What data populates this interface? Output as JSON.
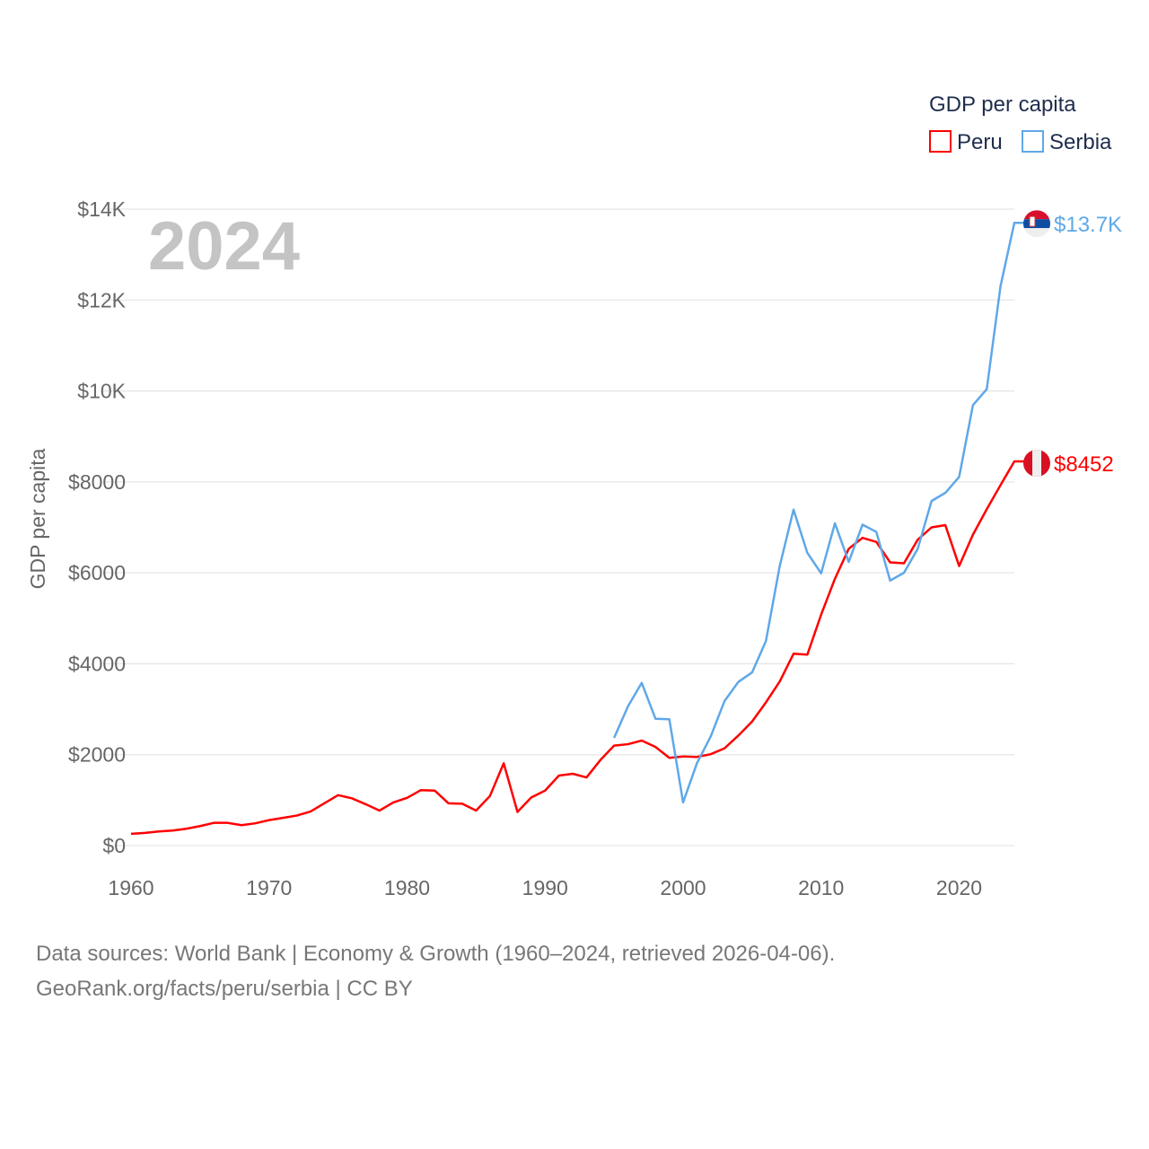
{
  "chart_data": {
    "type": "line",
    "legend_title": "GDP per capita",
    "legend_position": "top-right",
    "ylabel": "GDP per capita",
    "xlabel": "",
    "year_label": "2024",
    "xlim": [
      1960,
      2024
    ],
    "ylim": [
      0,
      14000
    ],
    "x_ticks": [
      "1960",
      "1970",
      "1980",
      "1990",
      "2000",
      "2010",
      "2020"
    ],
    "x_tick_values": [
      1960,
      1970,
      1980,
      1990,
      2000,
      2010,
      2020
    ],
    "y_ticks": [
      "$0",
      "$2000",
      "$4000",
      "$6000",
      "$8000",
      "$10K",
      "$12K",
      "$14K"
    ],
    "y_tick_values": [
      0,
      2000,
      4000,
      6000,
      8000,
      10000,
      12000,
      14000
    ],
    "grid": true,
    "series": [
      {
        "name": "Peru",
        "color": "#ff0000",
        "end_label": "$8452",
        "flag": "peru-flag",
        "start_year": 1960,
        "values": [
          260,
          280,
          310,
          330,
          370,
          430,
          500,
          500,
          450,
          490,
          560,
          610,
          660,
          750,
          930,
          1110,
          1040,
          910,
          770,
          950,
          1050,
          1220,
          1210,
          930,
          920,
          770,
          1090,
          1810,
          740,
          1060,
          1210,
          1540,
          1580,
          1500,
          1880,
          2200,
          2230,
          2310,
          2170,
          1930,
          1960,
          1950,
          2010,
          2140,
          2420,
          2730,
          3150,
          3610,
          4220,
          4200,
          5080,
          5870,
          6530,
          6770,
          6680,
          6230,
          6210,
          6730,
          7000,
          7050,
          6150,
          6840,
          7400,
          7930,
          8452
        ]
      },
      {
        "name": "Serbia",
        "color": "#5fa8e8",
        "end_label": "$13.7K",
        "flag": "serbia-flag",
        "start_year": 1995,
        "values": [
          2370,
          3060,
          3580,
          2790,
          2780,
          950,
          1810,
          2400,
          3180,
          3600,
          3810,
          4500,
          6150,
          7390,
          6440,
          5990,
          7090,
          6240,
          7060,
          6900,
          5830,
          6000,
          6530,
          7580,
          7760,
          8110,
          9690,
          10040,
          12310,
          13700
        ]
      }
    ]
  },
  "footer": {
    "line1": "Data sources: World Bank | Economy & Growth (1960–2024, retrieved 2026-04-06).",
    "line2": "GeoRank.org/facts/peru/serbia | CC BY"
  }
}
